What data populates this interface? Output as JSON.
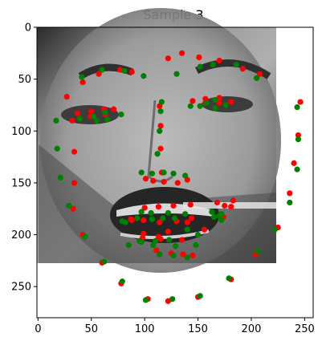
{
  "chart_data": {
    "type": "scatter",
    "title": "Sample 3",
    "xlabel": "",
    "ylabel": "",
    "xlim": [
      -1,
      258
    ],
    "ylim": [
      280,
      0
    ],
    "y_inverted": true,
    "grid": false,
    "legend": "none",
    "background_image": "grayscale face photo (extent x 0-225, y 0-223)",
    "x_ticks": [
      0,
      50,
      100,
      150,
      200,
      250
    ],
    "y_ticks": [
      0,
      50,
      100,
      150,
      200,
      250
    ],
    "series": [
      {
        "color": "#ff0000",
        "points": [
          [
            27,
            67
          ],
          [
            32,
            90
          ],
          [
            34,
            120
          ],
          [
            34,
            150
          ],
          [
            33,
            175
          ],
          [
            42,
            200
          ],
          [
            60,
            227
          ],
          [
            78,
            247
          ],
          [
            103,
            262
          ],
          [
            122,
            264
          ],
          [
            150,
            260
          ],
          [
            181,
            243
          ],
          [
            204,
            219
          ],
          [
            225,
            193
          ],
          [
            236,
            160
          ],
          [
            240,
            131
          ],
          [
            244,
            104
          ],
          [
            246,
            72
          ],
          [
            42,
            53
          ],
          [
            57,
            45
          ],
          [
            77,
            41
          ],
          [
            88,
            43
          ],
          [
            122,
            30
          ],
          [
            135,
            25
          ],
          [
            151,
            29
          ],
          [
            170,
            32
          ],
          [
            192,
            40
          ],
          [
            208,
            45
          ],
          [
            114,
            76
          ],
          [
            115,
            95
          ],
          [
            115,
            117
          ],
          [
            116,
            140
          ],
          [
            101,
            146
          ],
          [
            108,
            148
          ],
          [
            118,
            149
          ],
          [
            131,
            150
          ],
          [
            140,
            147
          ],
          [
            37,
            83
          ],
          [
            50,
            81
          ],
          [
            62,
            79
          ],
          [
            71,
            79
          ],
          [
            63,
            84
          ],
          [
            49,
            86
          ],
          [
            145,
            71
          ],
          [
            157,
            69
          ],
          [
            170,
            68
          ],
          [
            181,
            72
          ],
          [
            170,
            73
          ],
          [
            157,
            73
          ],
          [
            88,
            186
          ],
          [
            100,
            174
          ],
          [
            113,
            173
          ],
          [
            127,
            172
          ],
          [
            143,
            171
          ],
          [
            168,
            169
          ],
          [
            183,
            167
          ],
          [
            174,
            183
          ],
          [
            156,
            195
          ],
          [
            135,
            205
          ],
          [
            115,
            204
          ],
          [
            99,
            199
          ],
          [
            87,
            185
          ],
          [
            99,
            186
          ],
          [
            114,
            188
          ],
          [
            130,
            187
          ],
          [
            140,
            188
          ],
          [
            175,
            172
          ],
          [
            181,
            173
          ],
          [
            144,
            184
          ],
          [
            122,
            197
          ],
          [
            113,
            202
          ],
          [
            98,
            203
          ],
          [
            111,
            215
          ],
          [
            125,
            218
          ],
          [
            136,
            219
          ],
          [
            145,
            220
          ]
        ]
      },
      {
        "color": "#008000",
        "points": [
          [
            17,
            90
          ],
          [
            18,
            117
          ],
          [
            21,
            145
          ],
          [
            29,
            172
          ],
          [
            44,
            202
          ],
          [
            62,
            226
          ],
          [
            79,
            245
          ],
          [
            101,
            263
          ],
          [
            126,
            262
          ],
          [
            152,
            259
          ],
          [
            179,
            242
          ],
          [
            206,
            216
          ],
          [
            222,
            195
          ],
          [
            236,
            169
          ],
          [
            243,
            137
          ],
          [
            244,
            108
          ],
          [
            243,
            77
          ],
          [
            41,
            48
          ],
          [
            60,
            41
          ],
          [
            81,
            42
          ],
          [
            99,
            47
          ],
          [
            130,
            45
          ],
          [
            152,
            38
          ],
          [
            164,
            36
          ],
          [
            186,
            36
          ],
          [
            205,
            49
          ],
          [
            116,
            72
          ],
          [
            115,
            81
          ],
          [
            114,
            100
          ],
          [
            112,
            122
          ],
          [
            97,
            140
          ],
          [
            107,
            141
          ],
          [
            118,
            140
          ],
          [
            127,
            141
          ],
          [
            138,
            143
          ],
          [
            39,
            88
          ],
          [
            52,
            86
          ],
          [
            63,
            82
          ],
          [
            78,
            84
          ],
          [
            65,
            89
          ],
          [
            55,
            90
          ],
          [
            143,
            76
          ],
          [
            158,
            73
          ],
          [
            166,
            70
          ],
          [
            176,
            75
          ],
          [
            166,
            78
          ],
          [
            152,
            76
          ],
          [
            79,
            187
          ],
          [
            93,
            184
          ],
          [
            107,
            185
          ],
          [
            117,
            184
          ],
          [
            128,
            184
          ],
          [
            165,
            183
          ],
          [
            172,
            180
          ],
          [
            172,
            186
          ],
          [
            150,
            200
          ],
          [
            129,
            211
          ],
          [
            108,
            210
          ],
          [
            95,
            206
          ],
          [
            82,
            188
          ],
          [
            97,
            178
          ],
          [
            106,
            179
          ],
          [
            122,
            179
          ],
          [
            138,
            180
          ],
          [
            163,
            178
          ],
          [
            170,
            182
          ],
          [
            140,
            195
          ],
          [
            123,
            205
          ],
          [
            110,
            206
          ],
          [
            97,
            207
          ],
          [
            85,
            210
          ],
          [
            114,
            219
          ],
          [
            127,
            220
          ],
          [
            140,
            222
          ],
          [
            148,
            210
          ]
        ]
      }
    ]
  }
}
